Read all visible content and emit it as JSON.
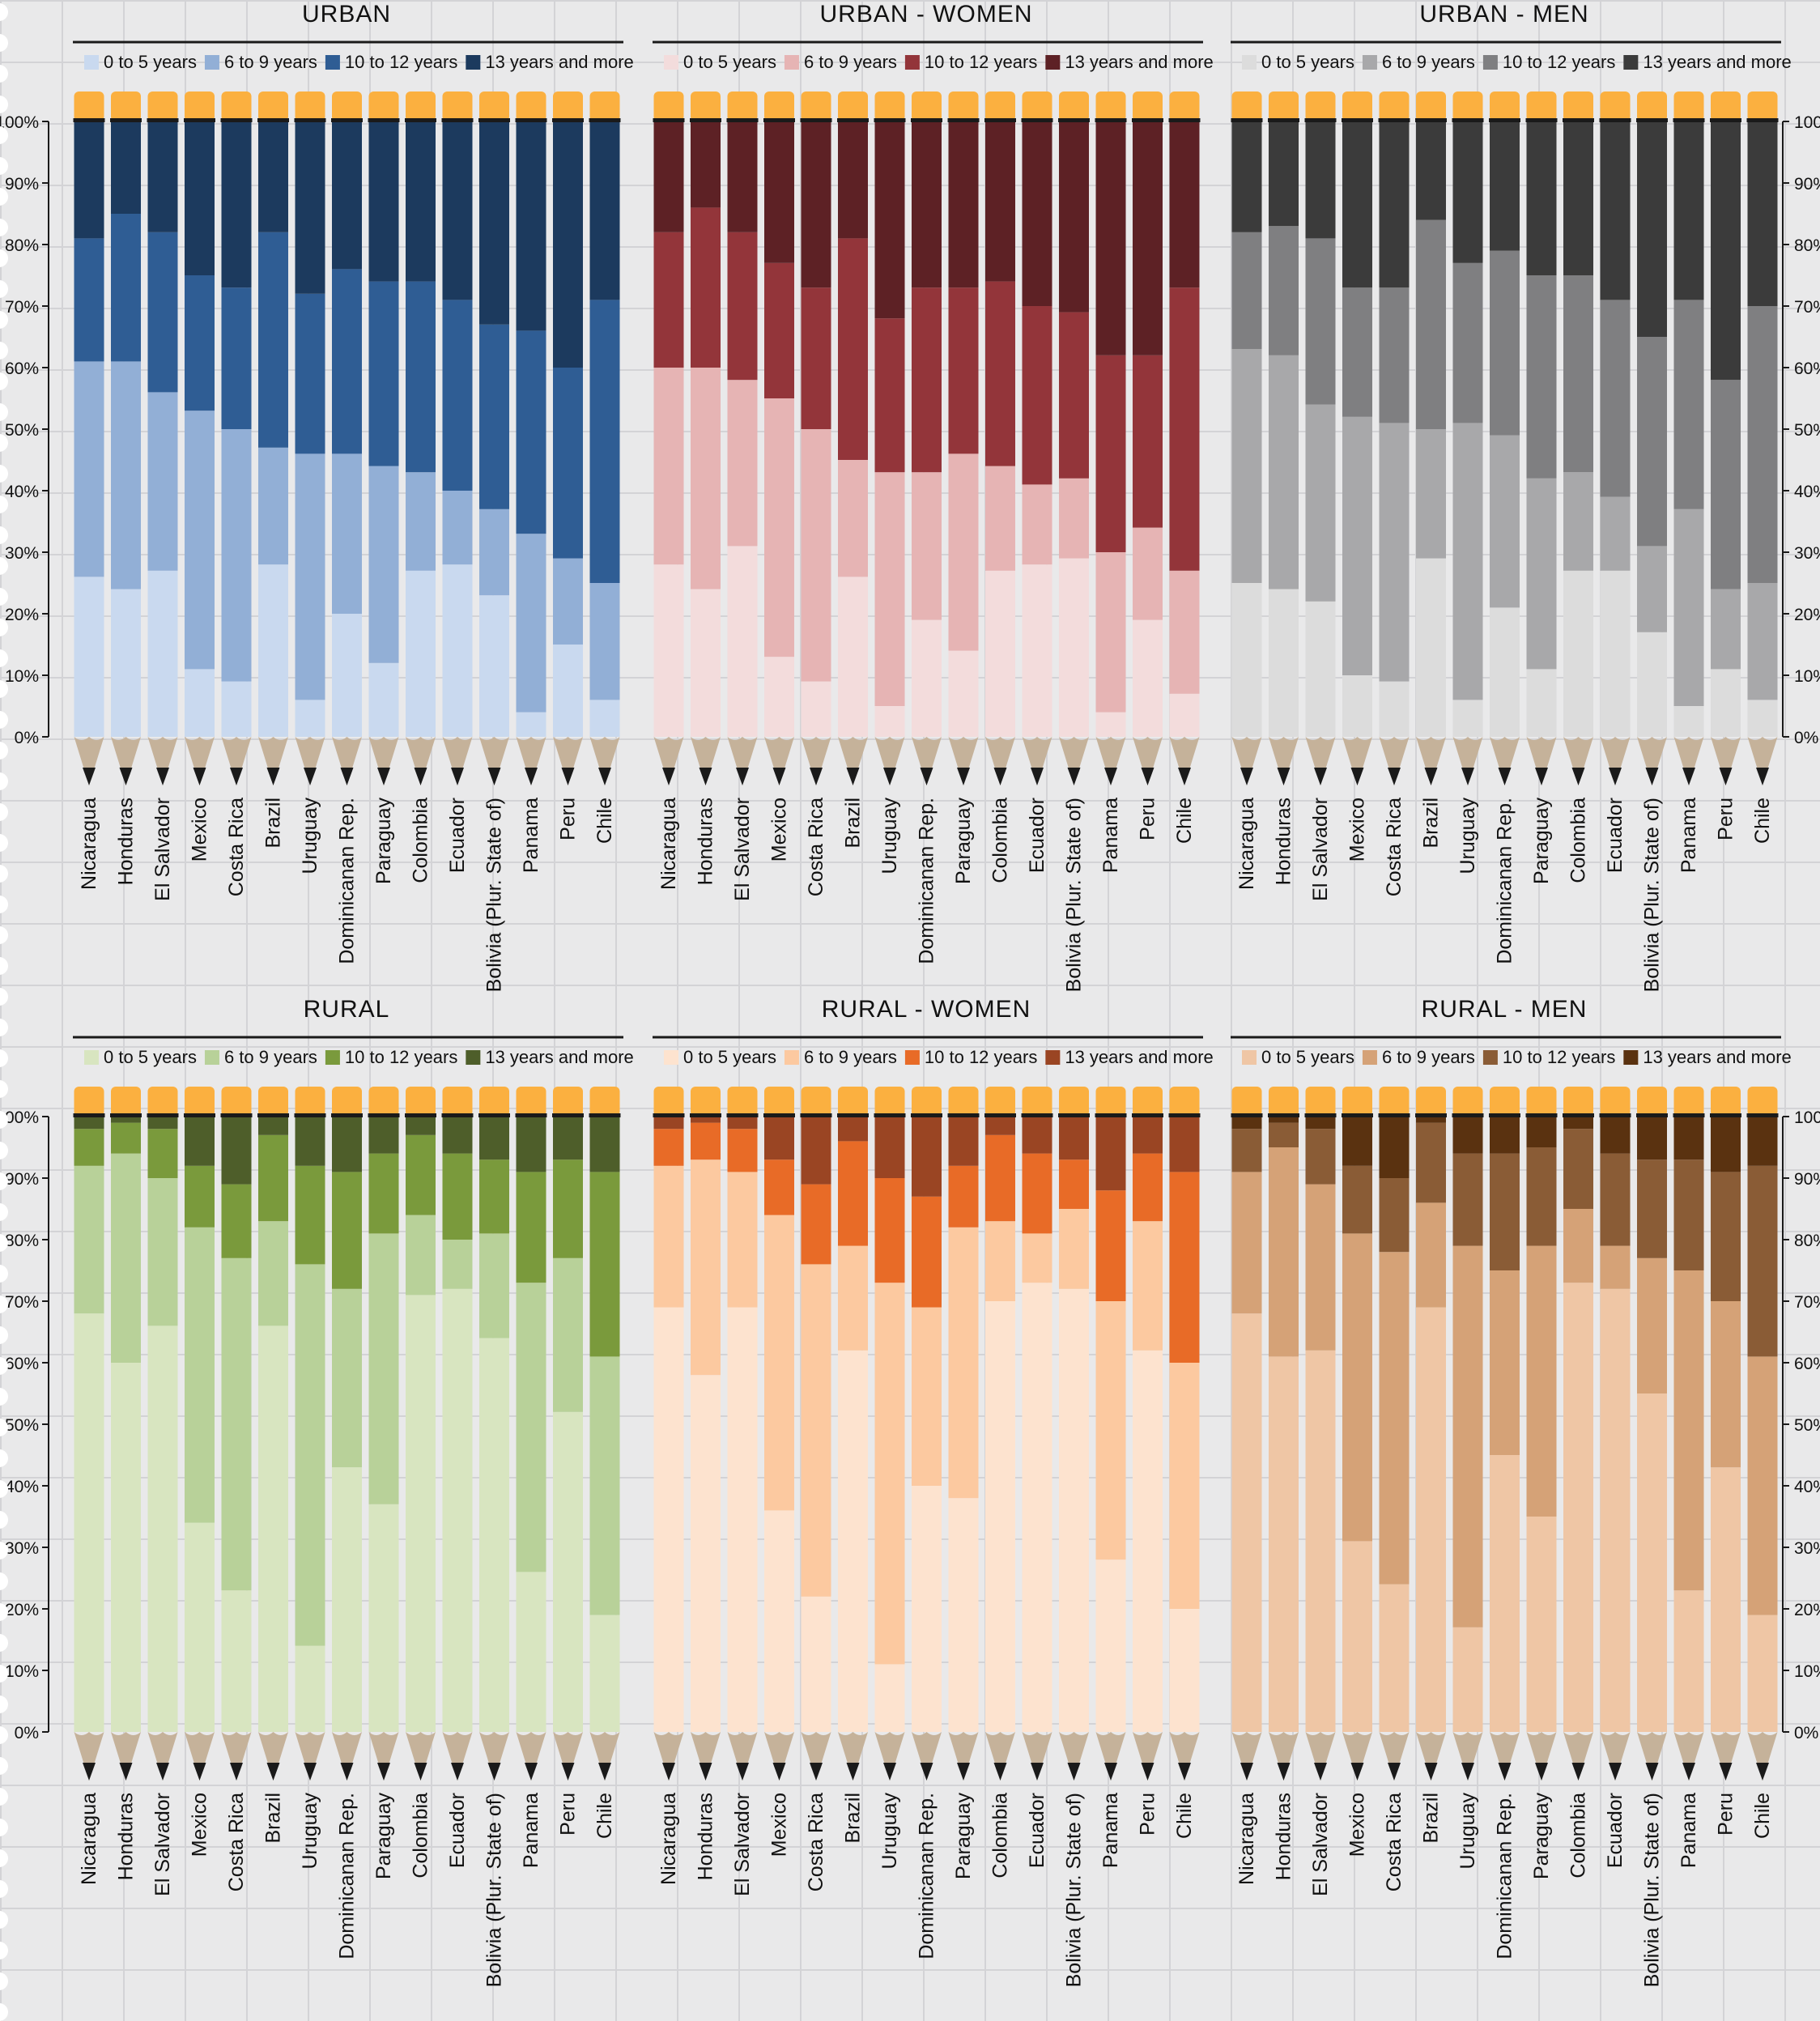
{
  "countries": [
    "Nicaragua",
    "Honduras",
    "El Salvador",
    "Mexico",
    "Costa Rica",
    "Brazil",
    "Uruguay",
    "Dominicanan Rep.",
    "Paraguay",
    "Colombia",
    "Ecuador",
    "Bolivia (Plur. State of)",
    "Panama",
    "Peru",
    "Chile"
  ],
  "legend_labels": [
    "0 to 5 years",
    "6 to 9 years",
    "10 to 12 years",
    "13 years and more"
  ],
  "y_ticks": [
    "0%",
    "10%",
    "20%",
    "30%",
    "40%",
    "50%",
    "60%",
    "70%",
    "80%",
    "90%",
    "100%"
  ],
  "colors": {
    "pencil_eraser": "#fbb040",
    "pencil_band": "#1a1a1a",
    "pencil_wood": "#c5b29a",
    "pencil_lead": "#1a1a1a",
    "title_rule": "#1a1a1a"
  },
  "chart_data": [
    {
      "type": "bar",
      "stacked": true,
      "title": "URBAN",
      "categories_ref": "countries",
      "ylim": [
        0,
        100
      ],
      "y_unit": "%",
      "legend": "top",
      "y_axis": "left",
      "colors": [
        "#c9d9ef",
        "#92afd6",
        "#2f5d94",
        "#1c3a5e"
      ],
      "series": [
        {
          "name": "0 to 5 years",
          "values": [
            26,
            24,
            27,
            11,
            9,
            28,
            6,
            20,
            12,
            27,
            28,
            23,
            4,
            15,
            6
          ]
        },
        {
          "name": "6 to 9 years",
          "values": [
            35,
            37,
            29,
            42,
            41,
            19,
            40,
            26,
            32,
            16,
            12,
            14,
            29,
            14,
            19
          ]
        },
        {
          "name": "10 to 12 years",
          "values": [
            20,
            24,
            26,
            22,
            23,
            35,
            26,
            30,
            30,
            31,
            31,
            30,
            33,
            31,
            46
          ]
        },
        {
          "name": "13 years and more",
          "values": [
            19,
            15,
            18,
            25,
            27,
            18,
            28,
            24,
            26,
            26,
            29,
            33,
            34,
            40,
            29
          ]
        }
      ]
    },
    {
      "type": "bar",
      "stacked": true,
      "title": "URBAN - WOMEN",
      "categories_ref": "countries",
      "ylim": [
        0,
        100
      ],
      "y_unit": "%",
      "legend": "top",
      "y_axis": "none",
      "colors": [
        "#f3dcdc",
        "#e6b4b4",
        "#93353a",
        "#5d2125"
      ],
      "series": [
        {
          "name": "0 to 5 years",
          "values": [
            28,
            24,
            31,
            13,
            9,
            26,
            5,
            19,
            14,
            27,
            28,
            29,
            4,
            19,
            7
          ]
        },
        {
          "name": "6 to 9 years",
          "values": [
            32,
            36,
            27,
            42,
            41,
            19,
            38,
            24,
            32,
            17,
            13,
            13,
            26,
            15,
            20
          ]
        },
        {
          "name": "10 to 12 years",
          "values": [
            22,
            26,
            24,
            22,
            23,
            36,
            25,
            30,
            27,
            30,
            29,
            27,
            32,
            28,
            46
          ]
        },
        {
          "name": "13 years and more",
          "values": [
            18,
            14,
            18,
            23,
            27,
            19,
            32,
            27,
            27,
            26,
            30,
            31,
            38,
            38,
            27
          ]
        }
      ]
    },
    {
      "type": "bar",
      "stacked": true,
      "title": "URBAN - MEN",
      "categories_ref": "countries",
      "ylim": [
        0,
        100
      ],
      "y_unit": "%",
      "legend": "top",
      "y_axis": "right",
      "colors": [
        "#dcdcdc",
        "#a8a8aa",
        "#7f7f81",
        "#3b3b3b"
      ],
      "series": [
        {
          "name": "0 to 5 years",
          "values": [
            25,
            24,
            22,
            10,
            9,
            29,
            6,
            21,
            11,
            27,
            27,
            17,
            5,
            11,
            6
          ]
        },
        {
          "name": "6 to 9 years",
          "values": [
            38,
            38,
            32,
            42,
            42,
            21,
            45,
            28,
            31,
            16,
            12,
            14,
            32,
            13,
            19
          ]
        },
        {
          "name": "10 to 12 years",
          "values": [
            19,
            21,
            27,
            21,
            22,
            34,
            26,
            30,
            33,
            32,
            32,
            34,
            34,
            34,
            45
          ]
        },
        {
          "name": "13 years and more",
          "values": [
            18,
            17,
            19,
            27,
            27,
            16,
            23,
            21,
            25,
            25,
            29,
            35,
            29,
            42,
            30
          ]
        }
      ]
    },
    {
      "type": "bar",
      "stacked": true,
      "title": "RURAL",
      "categories_ref": "countries",
      "ylim": [
        0,
        100
      ],
      "y_unit": "%",
      "legend": "top",
      "y_axis": "left",
      "colors": [
        "#d8e5c0",
        "#b8d199",
        "#7a9a3c",
        "#4e5e2a"
      ],
      "series": [
        {
          "name": "0 to 5 years",
          "values": [
            68,
            60,
            66,
            34,
            23,
            66,
            14,
            43,
            37,
            71,
            72,
            64,
            26,
            52,
            19
          ]
        },
        {
          "name": "6 to 9 years",
          "values": [
            24,
            34,
            24,
            48,
            54,
            17,
            62,
            29,
            44,
            13,
            8,
            17,
            47,
            25,
            42
          ]
        },
        {
          "name": "10 to 12 years",
          "values": [
            6,
            5,
            8,
            10,
            12,
            14,
            16,
            19,
            13,
            13,
            14,
            12,
            18,
            16,
            30
          ]
        },
        {
          "name": "13 years and more",
          "values": [
            2,
            1,
            2,
            8,
            11,
            3,
            8,
            9,
            6,
            3,
            6,
            7,
            9,
            7,
            9
          ]
        }
      ]
    },
    {
      "type": "bar",
      "stacked": true,
      "title": "RURAL - WOMEN",
      "categories_ref": "countries",
      "ylim": [
        0,
        100
      ],
      "y_unit": "%",
      "legend": "top",
      "y_axis": "none",
      "colors": [
        "#fde3cf",
        "#fcc9a0",
        "#e86b27",
        "#9a4523"
      ],
      "series": [
        {
          "name": "0 to 5 years",
          "values": [
            69,
            58,
            69,
            36,
            22,
            62,
            11,
            40,
            38,
            70,
            73,
            72,
            28,
            62,
            20
          ]
        },
        {
          "name": "6 to 9 years",
          "values": [
            23,
            35,
            22,
            48,
            54,
            17,
            62,
            29,
            44,
            13,
            8,
            13,
            42,
            21,
            40
          ]
        },
        {
          "name": "10 to 12 years",
          "values": [
            6,
            6,
            7,
            9,
            13,
            17,
            17,
            18,
            10,
            14,
            13,
            8,
            18,
            11,
            31
          ]
        },
        {
          "name": "13 years and more",
          "values": [
            2,
            1,
            2,
            7,
            11,
            4,
            10,
            13,
            8,
            3,
            6,
            7,
            12,
            6,
            9
          ]
        }
      ]
    },
    {
      "type": "bar",
      "stacked": true,
      "title": "RURAL - MEN",
      "categories_ref": "countries",
      "ylim": [
        0,
        100
      ],
      "y_unit": "%",
      "legend": "top",
      "y_axis": "right",
      "colors": [
        "#efc6a5",
        "#d5a277",
        "#8a5c36",
        "#5a3210"
      ],
      "series": [
        {
          "name": "0 to 5 years",
          "values": [
            68,
            61,
            62,
            31,
            24,
            69,
            17,
            45,
            35,
            73,
            72,
            55,
            23,
            43,
            19
          ]
        },
        {
          "name": "6 to 9 years",
          "values": [
            23,
            34,
            27,
            50,
            54,
            17,
            62,
            30,
            44,
            12,
            7,
            22,
            52,
            27,
            42
          ]
        },
        {
          "name": "10 to 12 years",
          "values": [
            7,
            4,
            9,
            11,
            12,
            13,
            15,
            19,
            16,
            13,
            15,
            16,
            18,
            21,
            31
          ]
        },
        {
          "name": "13 years and more",
          "values": [
            2,
            1,
            2,
            8,
            10,
            1,
            6,
            6,
            5,
            2,
            6,
            7,
            7,
            9,
            8
          ]
        }
      ]
    }
  ]
}
